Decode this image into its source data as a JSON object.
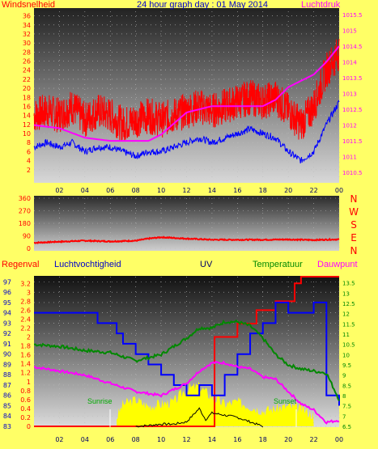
{
  "chart_data": [
    {
      "type": "line",
      "title": "24 hour graph day : 01 May 2014",
      "left_label": "Windsnelheid",
      "right_label": "Luchtdruk",
      "x_ticks": [
        "02",
        "04",
        "06",
        "08",
        "10",
        "12",
        "14",
        "16",
        "18",
        "20",
        "22",
        "00"
      ],
      "y_left_ticks": [
        "2",
        "4",
        "6",
        "8",
        "10",
        "12",
        "14",
        "16",
        "18",
        "20",
        "22",
        "24",
        "26",
        "28",
        "30",
        "32",
        "34",
        "36"
      ],
      "y_left_range": [
        0,
        37
      ],
      "y_right_ticks": [
        "1010.5",
        "1011",
        "1011.5",
        "1012",
        "1012.5",
        "1013",
        "1013.5",
        "1014",
        "1014.5",
        "1015",
        "1015.5"
      ],
      "y_right_range": [
        1010.3,
        1015.6
      ],
      "series": [
        {
          "role": "wind-gust",
          "color": "#ff0000",
          "x": [
            0,
            1,
            2,
            3,
            4,
            5,
            6,
            7,
            8,
            9,
            10,
            11,
            12,
            13,
            14,
            15,
            16,
            17,
            18,
            19,
            20,
            21,
            22,
            23,
            24
          ],
          "values": [
            14,
            15,
            14,
            16,
            13,
            15,
            14,
            12,
            13,
            14,
            13,
            14,
            15,
            16,
            15,
            16,
            17,
            18,
            17,
            18,
            15,
            12,
            16,
            24,
            28
          ]
        },
        {
          "role": "wind-average",
          "color": "#0000ff",
          "x": [
            0,
            1,
            2,
            3,
            4,
            5,
            6,
            7,
            8,
            9,
            10,
            11,
            12,
            13,
            14,
            15,
            16,
            17,
            18,
            19,
            20,
            21,
            22,
            23,
            24
          ],
          "values": [
            7,
            8,
            7,
            8,
            6,
            7,
            7,
            6,
            5,
            6,
            6,
            7,
            8,
            9,
            8,
            9,
            10,
            11,
            10,
            9,
            6,
            4,
            6,
            12,
            17
          ]
        },
        {
          "role": "pressure",
          "color": "#ff00ff",
          "x": [
            0,
            2,
            4,
            6,
            8,
            9,
            10,
            12,
            14,
            16,
            18,
            19,
            20,
            22,
            23,
            24
          ],
          "values": [
            1012,
            1011.9,
            1011.6,
            1011.5,
            1011.5,
            1011.5,
            1011.7,
            1012.4,
            1012.6,
            1012.6,
            1012.6,
            1012.8,
            1013.2,
            1013.6,
            1014,
            1014.5
          ]
        }
      ]
    },
    {
      "type": "line",
      "right_labels": [
        "N",
        "W",
        "S",
        "E",
        "N"
      ],
      "y_ticks": [
        "360",
        "270",
        "180",
        "90",
        "0"
      ],
      "y_range": [
        0,
        360
      ],
      "x_ticks": [
        "02",
        "04",
        "06",
        "08",
        "10",
        "12",
        "14",
        "16",
        "18",
        "20",
        "22",
        "00"
      ],
      "series": [
        {
          "role": "wind-direction",
          "color": "#ff0000",
          "x": [
            0,
            2,
            4,
            6,
            8,
            9,
            10,
            12,
            14,
            16,
            18,
            20,
            22,
            24
          ],
          "values": [
            40,
            48,
            55,
            50,
            55,
            70,
            80,
            70,
            62,
            62,
            62,
            64,
            60,
            65
          ]
        }
      ]
    },
    {
      "type": "line",
      "labels": {
        "rain": "Regenval",
        "humidity": "Luchtvochtigheid",
        "uv": "UV",
        "temperature": "Temperatuur",
        "dewpoint": "Dauwpunt",
        "sunrise": "Sunrise",
        "sunset": "Sunset"
      },
      "x_ticks": [
        "02",
        "04",
        "06",
        "08",
        "10",
        "12",
        "14",
        "16",
        "18",
        "20",
        "22",
        "00"
      ],
      "y_hum_ticks": [
        "83",
        "84",
        "85",
        "86",
        "87",
        "88",
        "89",
        "90",
        "91",
        "92",
        "93",
        "94",
        "95",
        "96",
        "97"
      ],
      "y_hum_range": [
        83,
        97.5
      ],
      "y_uv_ticks": [
        "0",
        "0.2",
        "0.4",
        "0.6",
        "0.8",
        "1",
        "1.2",
        "1.4",
        "1.6",
        "1.8",
        "2",
        "2.2",
        "2.4",
        "2.6",
        "2.8",
        "3",
        "3.2"
      ],
      "y_uv_range": [
        0,
        3.35
      ],
      "y_temp_ticks": [
        "6.5",
        "7",
        "7.5",
        "8",
        "8.5",
        "9",
        "9.5",
        "10",
        "10.5",
        "11",
        "11.5",
        "12",
        "12.5",
        "13",
        "13.5"
      ],
      "y_temp_range": [
        6.5,
        13.8
      ],
      "series": [
        {
          "role": "rain",
          "color": "#ff0000",
          "x": [
            0,
            14,
            14.2,
            16,
            17.5,
            19,
            20.5,
            21,
            24
          ],
          "values": [
            0,
            0,
            2.0,
            2.3,
            2.6,
            2.8,
            3.2,
            3.35,
            3.35
          ]
        },
        {
          "role": "humidity",
          "color": "#0000ff",
          "x": [
            0,
            4,
            5,
            6,
            6.5,
            7,
            8,
            9,
            10,
            11,
            12,
            13,
            14,
            15,
            16,
            17,
            18,
            19,
            20,
            21,
            22,
            23,
            24
          ],
          "values": [
            94,
            94,
            93,
            93,
            92,
            91,
            90,
            89,
            88,
            87,
            86,
            87,
            86,
            88,
            90,
            92,
            93,
            95,
            94,
            94,
            95,
            86,
            85
          ]
        },
        {
          "role": "temperature",
          "color": "#008800",
          "x": [
            0,
            2,
            4,
            6,
            8,
            10,
            11,
            12,
            13,
            14,
            15,
            16,
            17,
            18,
            19,
            20,
            21,
            22,
            23,
            24
          ],
          "values": [
            10.5,
            10.4,
            10.2,
            10.1,
            9.7,
            10,
            10.4,
            10.8,
            11.3,
            11.3,
            11.6,
            11.6,
            11.4,
            10.8,
            10.0,
            9.5,
            9.3,
            9.2,
            9.1,
            7.8
          ]
        },
        {
          "role": "dewpoint",
          "color": "#ff00ff",
          "x": [
            0,
            2,
            4,
            6,
            8,
            9,
            10,
            11,
            12,
            13,
            14,
            15,
            16,
            17,
            18,
            19,
            20,
            21,
            22,
            23,
            24
          ],
          "values": [
            9.4,
            9.2,
            9.0,
            8.6,
            8.2,
            8.1,
            8.0,
            8.3,
            8.6,
            9.2,
            9.6,
            9.6,
            9.4,
            9.3,
            8.9,
            8.8,
            8.2,
            7.6,
            7.3,
            6.7,
            6.8
          ]
        },
        {
          "role": "solar",
          "color": "#ffff00",
          "x": [
            6.5,
            7,
            8,
            9,
            10,
            11,
            12,
            13,
            14,
            15,
            16,
            17,
            18,
            19,
            20,
            21,
            22
          ],
          "values": [
            0.2,
            0.5,
            0.6,
            0.45,
            0.5,
            0.55,
            0.85,
            0.9,
            0.65,
            0.5,
            0.55,
            0.45,
            0.35,
            0.4,
            0.45,
            0.4,
            0.25
          ]
        },
        {
          "role": "uv",
          "color": "#000000",
          "x": [
            8,
            9,
            10,
            11,
            12,
            13,
            13.5,
            14,
            15,
            16,
            17,
            18
          ],
          "values": [
            0,
            0.02,
            0.05,
            0.05,
            0.1,
            0.4,
            0.15,
            0.3,
            0.25,
            0.2,
            0.1,
            0
          ]
        }
      ]
    }
  ]
}
